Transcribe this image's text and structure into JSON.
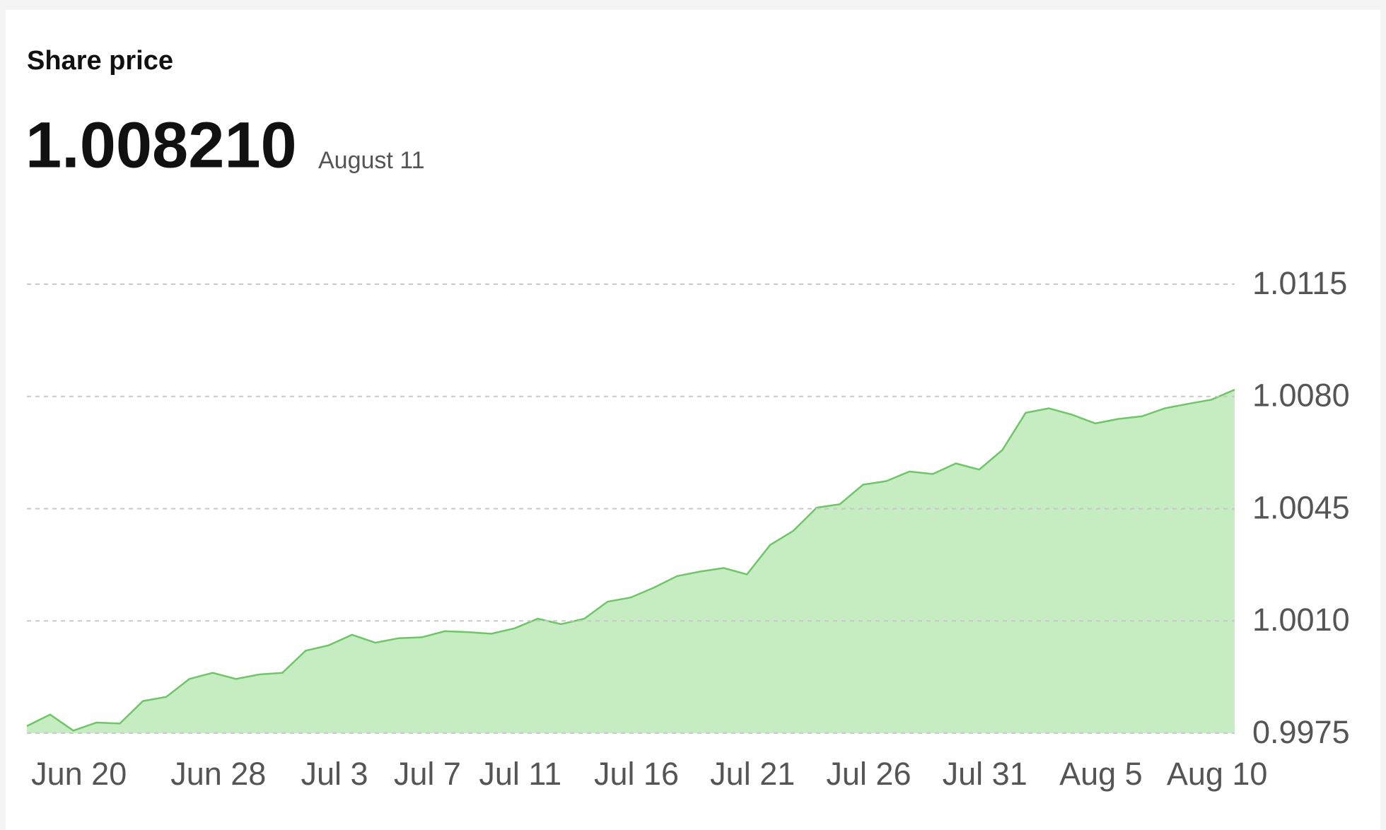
{
  "chart_data": {
    "type": "area",
    "title": "Share price",
    "headline": {
      "value": "1.008210",
      "date": "August 11"
    },
    "categories": [
      null,
      null,
      "Jun 20",
      null,
      null,
      null,
      null,
      null,
      "Jun 28",
      null,
      null,
      null,
      null,
      "Jul 3",
      null,
      null,
      null,
      "Jul 7",
      null,
      null,
      null,
      "Jul 11",
      null,
      null,
      null,
      null,
      "Jul 16",
      null,
      null,
      null,
      null,
      "Jul 21",
      null,
      null,
      null,
      null,
      "Jul 26",
      null,
      null,
      null,
      null,
      "Jul 31",
      null,
      null,
      null,
      null,
      "Aug 5",
      null,
      null,
      null,
      null,
      "Aug 10",
      null
    ],
    "values": [
      0.99772,
      0.99808,
      0.99758,
      0.99783,
      0.9978,
      0.9985,
      0.99863,
      0.99919,
      0.99938,
      0.99919,
      0.99933,
      0.99938,
      1.00007,
      1.00024,
      1.00057,
      1.00032,
      1.00046,
      1.00049,
      1.00068,
      1.00065,
      1.0006,
      1.00077,
      1.00107,
      1.0009,
      1.00107,
      1.0016,
      1.00173,
      1.00204,
      1.0024,
      1.00254,
      1.00265,
      1.00245,
      1.00337,
      1.00381,
      1.00453,
      1.00464,
      1.00525,
      1.00536,
      1.00566,
      1.00558,
      1.00591,
      1.00572,
      1.00633,
      1.00749,
      1.00763,
      1.00743,
      1.00716,
      1.0073,
      1.00738,
      1.00763,
      1.00777,
      1.0079,
      1.00821
    ],
    "color": "#6cc765",
    "fill": "#c6ecc1",
    "ylim": [
      0.9975,
      1.0115
    ],
    "yticks": [
      0.9975,
      {
        "value": 1.001,
        "label": "1.0010"
      },
      1.0045,
      {
        "value": 1.008,
        "label": "1.0080"
      },
      1.0115
    ],
    "grid": true
  }
}
